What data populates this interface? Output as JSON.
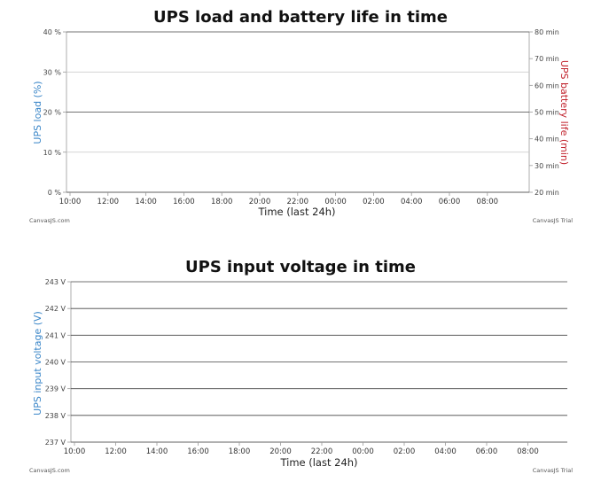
{
  "chart_data": [
    {
      "type": "line",
      "title": "UPS load and battery life in time",
      "xlabel": "Time (last 24h)",
      "ylabel": "UPS load (%)",
      "ylabel2": "UPS battery life (min)",
      "x_ticks": [
        "10:00",
        "12:00",
        "14:00",
        "16:00",
        "18:00",
        "20:00",
        "22:00",
        "00:00",
        "02:00",
        "04:00",
        "06:00",
        "08:00"
      ],
      "y_ticks": [
        "0 %",
        "10 %",
        "20 %",
        "30 %",
        "40 %"
      ],
      "y2_ticks": [
        "20 min",
        "30 min",
        "40 min",
        "50 min",
        "60 min",
        "70 min",
        "80 min"
      ],
      "ylim": [
        0,
        40
      ],
      "y2lim": [
        20,
        80
      ],
      "grid": true,
      "series": [],
      "credit_left": "CanvasJS.com",
      "credit_right": "CanvasJS Trial",
      "colors": {
        "left_axis": "#3a86c8",
        "right_axis": "#c0202a"
      }
    },
    {
      "type": "line",
      "title": "UPS input voltage in time",
      "xlabel": "Time (last 24h)",
      "ylabel": "UPS input voltage (V)",
      "x_ticks": [
        "10:00",
        "12:00",
        "14:00",
        "16:00",
        "18:00",
        "20:00",
        "22:00",
        "00:00",
        "02:00",
        "04:00",
        "06:00",
        "08:00"
      ],
      "y_ticks": [
        "237 V",
        "238 V",
        "239 V",
        "240 V",
        "241 V",
        "242 V",
        "243 V"
      ],
      "ylim": [
        237,
        243
      ],
      "grid": true,
      "series": [],
      "credit_left": "CanvasJS.com",
      "credit_right": "CanvasJS Trial",
      "colors": {
        "left_axis": "#3a86c8"
      }
    }
  ]
}
